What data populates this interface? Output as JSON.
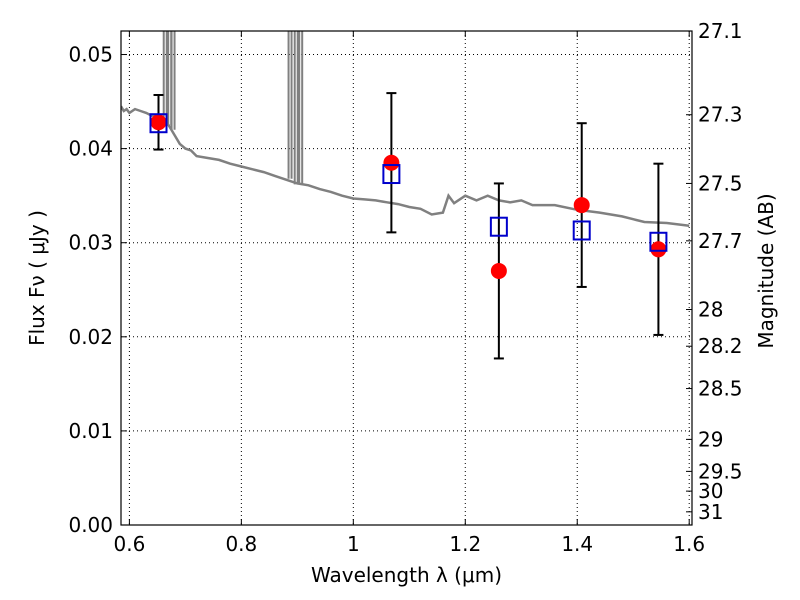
{
  "chart_data": {
    "type": "scatter",
    "xlabel": "Wavelength  λ (μm)",
    "ylabel": "Flux  Fν  ( μJy )",
    "y2label": "Magnitude (AB)",
    "xlim": [
      0.585,
      1.605
    ],
    "ylim": [
      0.0,
      0.0525
    ],
    "x_ticks": [
      {
        "value": 0.6,
        "label": "0.6"
      },
      {
        "value": 0.8,
        "label": "0.8"
      },
      {
        "value": 1.0,
        "label": "1"
      },
      {
        "value": 1.2,
        "label": "1.2"
      },
      {
        "value": 1.4,
        "label": "1.4"
      },
      {
        "value": 1.6,
        "label": "1.6"
      }
    ],
    "y_ticks": [
      {
        "value": 0.0,
        "label": "0.00"
      },
      {
        "value": 0.01,
        "label": "0.01"
      },
      {
        "value": 0.02,
        "label": "0.02"
      },
      {
        "value": 0.03,
        "label": "0.03"
      },
      {
        "value": 0.04,
        "label": "0.04"
      },
      {
        "value": 0.05,
        "label": "0.05"
      }
    ],
    "y2_ticks": [
      {
        "flux": 0.0525,
        "label": "27.1"
      },
      {
        "flux": 0.0436,
        "label": "27.3"
      },
      {
        "flux": 0.0363,
        "label": "27.5"
      },
      {
        "flux": 0.0302,
        "label": "27.7"
      },
      {
        "flux": 0.0229,
        "label": "28"
      },
      {
        "flux": 0.019,
        "label": "28.2"
      },
      {
        "flux": 0.0145,
        "label": "28.5"
      },
      {
        "flux": 0.0091,
        "label": "29"
      },
      {
        "flux": 0.0057,
        "label": "29.5"
      },
      {
        "flux": 0.0036,
        "label": "30"
      },
      {
        "flux": 0.0014,
        "label": "31"
      }
    ],
    "grid": true,
    "colors": {
      "observed": "#ff0000",
      "model_points": "#0000cc",
      "errorbar": "#000000",
      "spectrum": "#808080",
      "grid": "#000000"
    },
    "observed": [
      {
        "x": 0.652,
        "y": 0.0428,
        "err": 0.0029
      },
      {
        "x": 1.068,
        "y": 0.0385,
        "err": 0.0074
      },
      {
        "x": 1.26,
        "y": 0.027,
        "err": 0.0093
      },
      {
        "x": 1.408,
        "y": 0.034,
        "err": 0.0087
      },
      {
        "x": 1.545,
        "y": 0.0293,
        "err": 0.0091
      }
    ],
    "model_points": [
      {
        "x": 0.652,
        "y": 0.0427
      },
      {
        "x": 1.068,
        "y": 0.0373
      },
      {
        "x": 1.26,
        "y": 0.0317
      },
      {
        "x": 1.408,
        "y": 0.0313
      },
      {
        "x": 1.545,
        "y": 0.0301
      }
    ],
    "spectrum": [
      [
        0.585,
        0.0445
      ],
      [
        0.59,
        0.044
      ],
      [
        0.595,
        0.0442
      ],
      [
        0.6,
        0.0438
      ],
      [
        0.61,
        0.0442
      ],
      [
        0.62,
        0.044
      ],
      [
        0.63,
        0.0438
      ],
      [
        0.64,
        0.0435
      ],
      [
        0.65,
        0.0436
      ],
      [
        0.655,
        0.0433
      ],
      [
        0.66,
        0.043
      ],
      [
        0.665,
        0.0428
      ],
      [
        0.67,
        0.0425
      ],
      [
        0.68,
        0.0415
      ],
      [
        0.69,
        0.0405
      ],
      [
        0.7,
        0.04
      ],
      [
        0.71,
        0.0398
      ],
      [
        0.72,
        0.0392
      ],
      [
        0.74,
        0.039
      ],
      [
        0.76,
        0.0388
      ],
      [
        0.78,
        0.0384
      ],
      [
        0.8,
        0.0381
      ],
      [
        0.82,
        0.0378
      ],
      [
        0.84,
        0.0375
      ],
      [
        0.86,
        0.0371
      ],
      [
        0.88,
        0.0367
      ],
      [
        0.9,
        0.0363
      ],
      [
        0.92,
        0.0361
      ],
      [
        0.94,
        0.0357
      ],
      [
        0.96,
        0.0354
      ],
      [
        0.98,
        0.035
      ],
      [
        1.0,
        0.0347
      ],
      [
        1.02,
        0.0346
      ],
      [
        1.04,
        0.0345
      ],
      [
        1.06,
        0.0343
      ],
      [
        1.08,
        0.0341
      ],
      [
        1.1,
        0.0338
      ],
      [
        1.12,
        0.0336
      ],
      [
        1.14,
        0.033
      ],
      [
        1.16,
        0.0332
      ],
      [
        1.17,
        0.035
      ],
      [
        1.18,
        0.0342
      ],
      [
        1.2,
        0.035
      ],
      [
        1.22,
        0.0345
      ],
      [
        1.24,
        0.035
      ],
      [
        1.26,
        0.0345
      ],
      [
        1.28,
        0.0343
      ],
      [
        1.3,
        0.0345
      ],
      [
        1.32,
        0.034
      ],
      [
        1.36,
        0.034
      ],
      [
        1.4,
        0.0335
      ],
      [
        1.44,
        0.0332
      ],
      [
        1.48,
        0.0328
      ],
      [
        1.5,
        0.0325
      ],
      [
        1.52,
        0.0322
      ],
      [
        1.56,
        0.0321
      ],
      [
        1.6,
        0.0318
      ]
    ],
    "spikes": [
      {
        "x": 0.664,
        "base": 0.0428
      },
      {
        "x": 0.672,
        "base": 0.0425
      },
      {
        "x": 0.678,
        "base": 0.042
      },
      {
        "x": 0.887,
        "base": 0.0368
      },
      {
        "x": 0.898,
        "base": 0.0362
      },
      {
        "x": 0.906,
        "base": 0.0362
      }
    ]
  }
}
